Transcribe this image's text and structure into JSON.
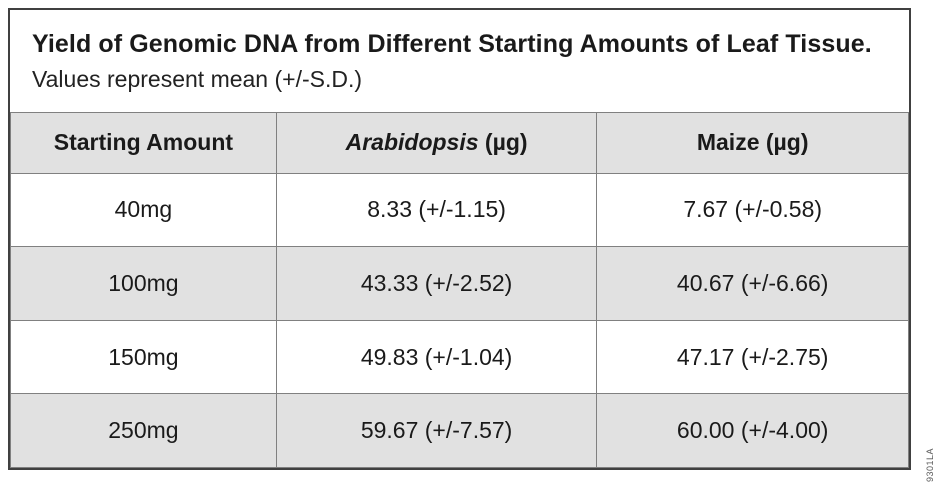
{
  "figure": {
    "title": "Yield of Genomic DNA from Different Starting Amounts of Leaf Tissue.",
    "subtitle": "Values represent mean (+/-S.D.)",
    "figure_code": "9301LA"
  },
  "table": {
    "headers": {
      "starting_amount": "Starting Amount",
      "arabidopsis_name": "Arabidopsis",
      "arabidopsis_unit": " (µg)",
      "maize": "Maize (µg)"
    },
    "rows": [
      {
        "amount": "40mg",
        "arabidopsis": "8.33 (+/-1.15)",
        "maize": "7.67 (+/-0.58)"
      },
      {
        "amount": "100mg",
        "arabidopsis": "43.33 (+/-2.52)",
        "maize": "40.67 (+/-6.66)"
      },
      {
        "amount": "150mg",
        "arabidopsis": "49.83 (+/-1.04)",
        "maize": "47.17 (+/-2.75)"
      },
      {
        "amount": "250mg",
        "arabidopsis": "59.67 (+/-7.57)",
        "maize": "60.00 (+/-4.00)"
      }
    ]
  },
  "colors": {
    "outer_border": "#404040",
    "grid_line": "#808080",
    "header_bg": "#e1e1e1",
    "stripe_bg": "#e1e1e1",
    "text": "#1a1a1a",
    "code_text": "#595959"
  }
}
